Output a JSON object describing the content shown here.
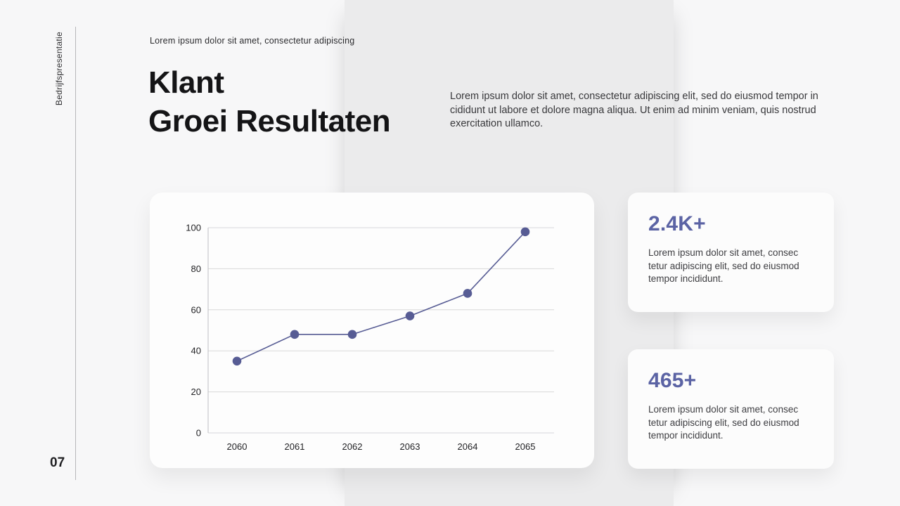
{
  "slide": {
    "sidebar": {
      "vertical_label": "Bedrijfspresentatie",
      "page_number": "07"
    },
    "header": {
      "kicker": "Lorem ipsum dolor sit amet, consectetur adipiscing",
      "title_line1": "Klant",
      "title_line2": "Groei Resultaten",
      "intro": "Lorem ipsum dolor sit amet, consectetur adipiscing elit, sed do eiusmod tempor in cididunt ut labore et dolore magna aliqua. Ut enim ad minim veniam, quis nostrud exercitation ullamco."
    },
    "stats": [
      {
        "value": "2.4K+",
        "description": "Lorem ipsum dolor sit amet, consec tetur adipiscing elit, sed do eiusmod tempor incididunt."
      },
      {
        "value": "465+",
        "description": "Lorem ipsum dolor sit amet, consec tetur adipiscing elit, sed do eiusmod tempor incididunt."
      }
    ],
    "colors": {
      "accent": "#5b63a4",
      "chart_line": "#575c94",
      "grid": "#d8d8da",
      "axis": "#bfbfc2",
      "tick_text": "#222225"
    }
  },
  "chart_data": {
    "type": "line",
    "title": "",
    "xlabel": "",
    "ylabel": "",
    "x": [
      2060,
      2061,
      2062,
      2063,
      2064,
      2065
    ],
    "values": [
      35,
      48,
      48,
      57,
      68,
      98
    ],
    "ylim": [
      0,
      100
    ],
    "yticks": [
      0,
      20,
      40,
      60,
      80,
      100
    ],
    "grid": true,
    "legend": "none",
    "marker": "circle"
  }
}
